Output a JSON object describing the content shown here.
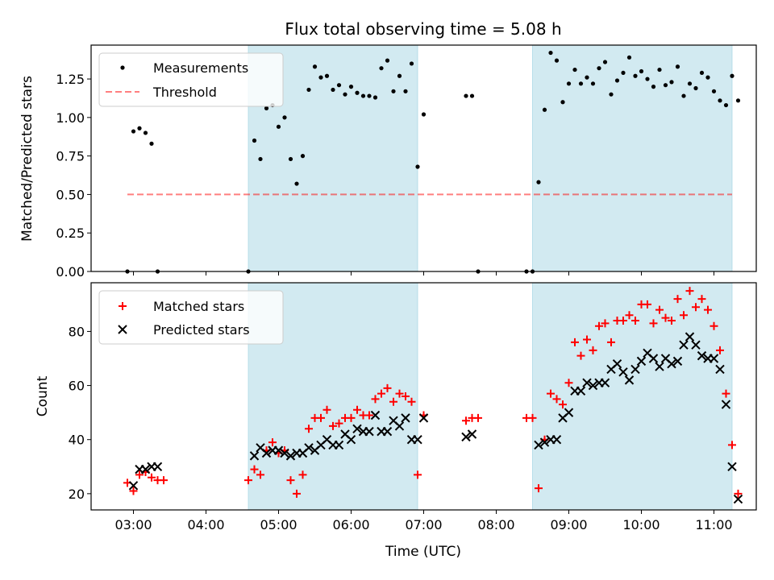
{
  "title": "Flux total observing time = 5.08 h",
  "colors": {
    "shade": "#add8e6",
    "measurement": "#000000",
    "threshold": "#ff0000",
    "matched": "#ff0000",
    "predicted": "#000000"
  },
  "chart_data": [
    {
      "type": "scatter",
      "panel": "top",
      "ylabel": "Matched/Predicted stars",
      "ylim": [
        0,
        1.47
      ],
      "yticks": [
        {
          "value": 0.0,
          "label": "0.00"
        },
        {
          "value": 0.25,
          "label": "0.25"
        },
        {
          "value": 0.5,
          "label": "0.50"
        },
        {
          "value": 0.75,
          "label": "0.75"
        },
        {
          "value": 1.0,
          "label": "1.00"
        },
        {
          "value": 1.25,
          "label": "1.25"
        }
      ],
      "legend_position": "top-left",
      "legend": [
        "Measurements",
        "Threshold"
      ],
      "threshold": {
        "name": "Threshold",
        "value": 0.5,
        "x_range": [
          "02:55",
          "11:15"
        ]
      },
      "shaded_intervals": [
        [
          "04:35",
          "06:55"
        ],
        [
          "08:30",
          "11:15"
        ]
      ],
      "series": [
        {
          "name": "Measurements",
          "points": [
            [
              "02:55",
              0.0
            ],
            [
              "03:00",
              0.91
            ],
            [
              "03:05",
              0.93
            ],
            [
              "03:10",
              0.9
            ],
            [
              "03:15",
              0.83
            ],
            [
              "03:20",
              0.0
            ],
            [
              "04:35",
              0.0
            ],
            [
              "04:40",
              0.85
            ],
            [
              "04:45",
              0.73
            ],
            [
              "04:50",
              1.06
            ],
            [
              "04:55",
              1.08
            ],
            [
              "05:00",
              0.94
            ],
            [
              "05:05",
              1.0
            ],
            [
              "05:10",
              0.73
            ],
            [
              "05:15",
              0.57
            ],
            [
              "05:20",
              0.75
            ],
            [
              "05:25",
              1.18
            ],
            [
              "05:30",
              1.33
            ],
            [
              "05:35",
              1.26
            ],
            [
              "05:40",
              1.27
            ],
            [
              "05:45",
              1.18
            ],
            [
              "05:50",
              1.21
            ],
            [
              "05:55",
              1.15
            ],
            [
              "06:00",
              1.2
            ],
            [
              "06:05",
              1.16
            ],
            [
              "06:10",
              1.14
            ],
            [
              "06:15",
              1.14
            ],
            [
              "06:20",
              1.13
            ],
            [
              "06:25",
              1.32
            ],
            [
              "06:30",
              1.37
            ],
            [
              "06:35",
              1.17
            ],
            [
              "06:40",
              1.27
            ],
            [
              "06:45",
              1.17
            ],
            [
              "06:50",
              1.35
            ],
            [
              "06:55",
              0.68
            ],
            [
              "07:00",
              1.02
            ],
            [
              "07:35",
              1.14
            ],
            [
              "07:40",
              1.14
            ],
            [
              "07:45",
              0.0
            ],
            [
              "08:25",
              0.0
            ],
            [
              "08:30",
              0.0
            ],
            [
              "08:35",
              0.58
            ],
            [
              "08:40",
              1.05
            ],
            [
              "08:45",
              1.42
            ],
            [
              "08:50",
              1.37
            ],
            [
              "08:55",
              1.1
            ],
            [
              "09:00",
              1.22
            ],
            [
              "09:05",
              1.31
            ],
            [
              "09:10",
              1.22
            ],
            [
              "09:15",
              1.26
            ],
            [
              "09:20",
              1.22
            ],
            [
              "09:25",
              1.32
            ],
            [
              "09:30",
              1.36
            ],
            [
              "09:35",
              1.15
            ],
            [
              "09:40",
              1.24
            ],
            [
              "09:45",
              1.29
            ],
            [
              "09:50",
              1.39
            ],
            [
              "09:55",
              1.27
            ],
            [
              "10:00",
              1.3
            ],
            [
              "10:05",
              1.25
            ],
            [
              "10:10",
              1.2
            ],
            [
              "10:15",
              1.31
            ],
            [
              "10:20",
              1.21
            ],
            [
              "10:25",
              1.23
            ],
            [
              "10:30",
              1.33
            ],
            [
              "10:35",
              1.14
            ],
            [
              "10:40",
              1.22
            ],
            [
              "10:45",
              1.19
            ],
            [
              "10:50",
              1.29
            ],
            [
              "10:55",
              1.26
            ],
            [
              "11:00",
              1.17
            ],
            [
              "11:05",
              1.11
            ],
            [
              "11:10",
              1.08
            ],
            [
              "11:15",
              1.27
            ],
            [
              "11:20",
              1.11
            ]
          ]
        }
      ]
    },
    {
      "type": "scatter",
      "panel": "bottom",
      "xlabel": "Time (UTC)",
      "ylabel": "Count",
      "xlim": [
        "02:25",
        "11:35"
      ],
      "ylim": [
        14,
        98
      ],
      "xticks": [
        "03:00",
        "04:00",
        "05:00",
        "06:00",
        "07:00",
        "08:00",
        "09:00",
        "10:00",
        "11:00"
      ],
      "yticks": [
        20,
        40,
        60,
        80
      ],
      "legend_position": "top-left",
      "legend": [
        "Matched stars",
        "Predicted stars"
      ],
      "shaded_intervals": [
        [
          "04:35",
          "06:55"
        ],
        [
          "08:30",
          "11:15"
        ]
      ],
      "series": [
        {
          "name": "Matched stars",
          "points": [
            [
              "02:55",
              24
            ],
            [
              "03:00",
              21
            ],
            [
              "03:05",
              27
            ],
            [
              "03:10",
              28
            ],
            [
              "03:15",
              26
            ],
            [
              "03:20",
              25
            ],
            [
              "03:25",
              25
            ],
            [
              "04:35",
              25
            ],
            [
              "04:40",
              29
            ],
            [
              "04:45",
              27
            ],
            [
              "04:50",
              36
            ],
            [
              "04:55",
              39
            ],
            [
              "05:00",
              35
            ],
            [
              "05:05",
              36
            ],
            [
              "05:10",
              25
            ],
            [
              "05:15",
              20
            ],
            [
              "05:20",
              27
            ],
            [
              "05:25",
              44
            ],
            [
              "05:30",
              48
            ],
            [
              "05:35",
              48
            ],
            [
              "05:40",
              51
            ],
            [
              "05:45",
              45
            ],
            [
              "05:50",
              46
            ],
            [
              "05:55",
              48
            ],
            [
              "06:00",
              48
            ],
            [
              "06:05",
              51
            ],
            [
              "06:10",
              49
            ],
            [
              "06:15",
              49
            ],
            [
              "06:20",
              55
            ],
            [
              "06:25",
              57
            ],
            [
              "06:30",
              59
            ],
            [
              "06:35",
              54
            ],
            [
              "06:40",
              57
            ],
            [
              "06:45",
              56
            ],
            [
              "06:50",
              54
            ],
            [
              "06:55",
              27
            ],
            [
              "07:00",
              49
            ],
            [
              "07:35",
              47
            ],
            [
              "07:40",
              48
            ],
            [
              "07:45",
              48
            ],
            [
              "08:25",
              48
            ],
            [
              "08:30",
              48
            ],
            [
              "08:35",
              22
            ],
            [
              "08:40",
              40
            ],
            [
              "08:45",
              57
            ],
            [
              "08:50",
              55
            ],
            [
              "08:55",
              53
            ],
            [
              "09:00",
              61
            ],
            [
              "09:05",
              76
            ],
            [
              "09:10",
              71
            ],
            [
              "09:15",
              77
            ],
            [
              "09:20",
              73
            ],
            [
              "09:25",
              82
            ],
            [
              "09:30",
              83
            ],
            [
              "09:35",
              76
            ],
            [
              "09:40",
              84
            ],
            [
              "09:45",
              84
            ],
            [
              "09:50",
              86
            ],
            [
              "09:55",
              84
            ],
            [
              "10:00",
              90
            ],
            [
              "10:05",
              90
            ],
            [
              "10:10",
              83
            ],
            [
              "10:15",
              88
            ],
            [
              "10:20",
              85
            ],
            [
              "10:25",
              84
            ],
            [
              "10:30",
              92
            ],
            [
              "10:35",
              86
            ],
            [
              "10:40",
              95
            ],
            [
              "10:45",
              89
            ],
            [
              "10:50",
              92
            ],
            [
              "10:55",
              88
            ],
            [
              "11:00",
              82
            ],
            [
              "11:05",
              73
            ],
            [
              "11:10",
              57
            ],
            [
              "11:15",
              38
            ],
            [
              "11:20",
              20
            ]
          ]
        },
        {
          "name": "Predicted stars",
          "points": [
            [
              "03:00",
              23
            ],
            [
              "03:05",
              29
            ],
            [
              "03:10",
              29
            ],
            [
              "03:15",
              30
            ],
            [
              "03:20",
              30
            ],
            [
              "04:40",
              34
            ],
            [
              "04:45",
              37
            ],
            [
              "04:50",
              35
            ],
            [
              "04:55",
              36
            ],
            [
              "05:00",
              36
            ],
            [
              "05:05",
              35
            ],
            [
              "05:10",
              34
            ],
            [
              "05:15",
              35
            ],
            [
              "05:20",
              35
            ],
            [
              "05:25",
              37
            ],
            [
              "05:30",
              36
            ],
            [
              "05:35",
              38
            ],
            [
              "05:40",
              40
            ],
            [
              "05:45",
              38
            ],
            [
              "05:50",
              38
            ],
            [
              "05:55",
              42
            ],
            [
              "06:00",
              40
            ],
            [
              "06:05",
              44
            ],
            [
              "06:10",
              43
            ],
            [
              "06:15",
              43
            ],
            [
              "06:20",
              49
            ],
            [
              "06:25",
              43
            ],
            [
              "06:30",
              43
            ],
            [
              "06:35",
              47
            ],
            [
              "06:40",
              45
            ],
            [
              "06:45",
              48
            ],
            [
              "06:50",
              40
            ],
            [
              "06:55",
              40
            ],
            [
              "07:00",
              48
            ],
            [
              "07:35",
              41
            ],
            [
              "07:40",
              42
            ],
            [
              "08:35",
              38
            ],
            [
              "08:40",
              39
            ],
            [
              "08:45",
              40
            ],
            [
              "08:50",
              40
            ],
            [
              "08:55",
              48
            ],
            [
              "09:00",
              50
            ],
            [
              "09:05",
              58
            ],
            [
              "09:10",
              58
            ],
            [
              "09:15",
              61
            ],
            [
              "09:20",
              60
            ],
            [
              "09:25",
              61
            ],
            [
              "09:30",
              61
            ],
            [
              "09:35",
              66
            ],
            [
              "09:40",
              68
            ],
            [
              "09:45",
              65
            ],
            [
              "09:50",
              62
            ],
            [
              "09:55",
              66
            ],
            [
              "10:00",
              69
            ],
            [
              "10:05",
              72
            ],
            [
              "10:10",
              70
            ],
            [
              "10:15",
              67
            ],
            [
              "10:20",
              70
            ],
            [
              "10:25",
              68
            ],
            [
              "10:30",
              69
            ],
            [
              "10:35",
              75
            ],
            [
              "10:40",
              78
            ],
            [
              "10:45",
              75
            ],
            [
              "10:50",
              71
            ],
            [
              "10:55",
              70
            ],
            [
              "11:00",
              70
            ],
            [
              "11:05",
              66
            ],
            [
              "11:10",
              53
            ],
            [
              "11:15",
              30
            ],
            [
              "11:20",
              18
            ]
          ]
        }
      ]
    }
  ]
}
